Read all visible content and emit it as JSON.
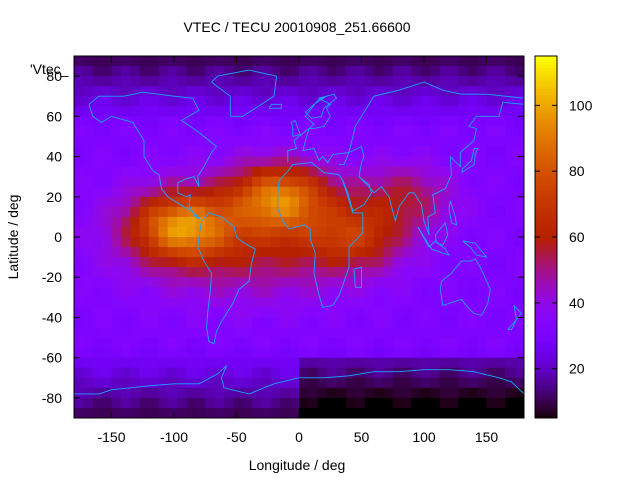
{
  "chart_data": {
    "type": "heatmap",
    "title": "VTEC / TECU 20010908_251.66600",
    "xlabel": "Longitude / deg",
    "ylabel": "Latitude / deg",
    "legend_key": "'Vtec_",
    "xlim": [
      -180,
      180
    ],
    "ylim": [
      -90,
      90
    ],
    "x_ticks": [
      -150,
      -100,
      -50,
      0,
      50,
      100,
      150
    ],
    "y_ticks": [
      -80,
      -60,
      -40,
      -20,
      0,
      20,
      40,
      60,
      80
    ],
    "colorbar": {
      "range": [
        5,
        115
      ],
      "ticks": [
        20,
        40,
        60,
        80,
        100
      ],
      "palette": "gnuplot (black-purple-red-orange-yellow)"
    },
    "grid": false,
    "field_description": "Global vertical total electron content map with coastline overlay; maxima over South America and Africa near the geomagnetic equator",
    "peaks": [
      {
        "lon": -95,
        "lat": 5,
        "value": 110
      },
      {
        "lon": -15,
        "lat": 20,
        "value": 108
      },
      {
        "lon": 45,
        "lat": 0,
        "value": 75
      },
      {
        "lon": 85,
        "lat": 20,
        "value": 65
      }
    ],
    "background_value": 32
  }
}
